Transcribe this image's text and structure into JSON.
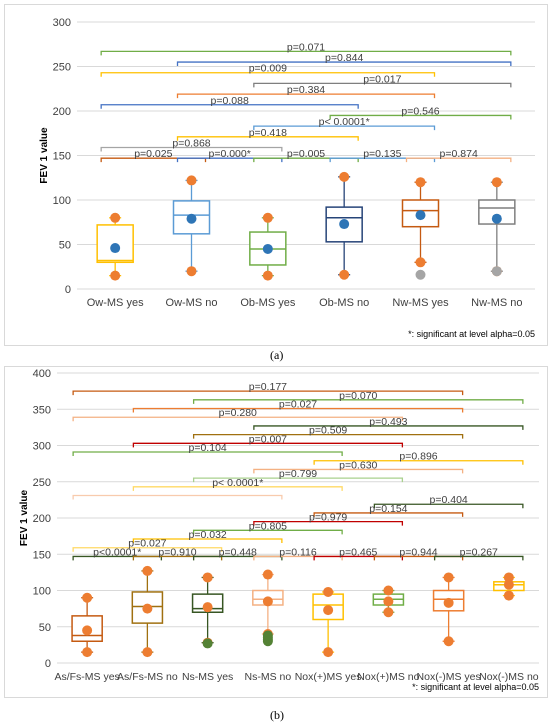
{
  "chart_data": [
    {
      "type": "boxplot",
      "ylabel": "FEV 1 value",
      "ylim": [
        0,
        300
      ],
      "yticks": [
        0,
        50,
        100,
        150,
        200,
        250,
        300
      ],
      "footnote": "*: significant at level alpha=0.05",
      "panel_label": "(a)",
      "categories": [
        "Ow-MS yes",
        "Ow-MS no",
        "Ob-MS yes",
        "Ob-MS no",
        "Nw-MS yes",
        "Nw-MS no"
      ],
      "boxes": [
        {
          "color": "#ffc000",
          "whisker_low": 15,
          "q1": 30,
          "median": 32,
          "q3": 72,
          "whisker_high": 80,
          "mean": 46,
          "outliers": []
        },
        {
          "color": "#5b9bd5",
          "whisker_low": 20,
          "q1": 62,
          "median": 83,
          "q3": 99,
          "whisker_high": 122,
          "mean": 79,
          "outliers": []
        },
        {
          "color": "#70ad47",
          "whisker_low": 15,
          "q1": 27,
          "median": 45,
          "q3": 64,
          "whisker_high": 80,
          "mean": 45,
          "outliers": []
        },
        {
          "color": "#264478",
          "whisker_low": 16,
          "q1": 53,
          "median": 80,
          "q3": 92,
          "whisker_high": 126,
          "mean": 73,
          "outliers": []
        },
        {
          "color": "#c55a11",
          "whisker_low": 30,
          "q1": 70,
          "median": 88,
          "q3": 100,
          "whisker_high": 120,
          "mean": 83,
          "outliers": [
            16
          ]
        },
        {
          "color": "#7f7f7f",
          "whisker_low": 20,
          "q1": 73,
          "median": 91,
          "q3": 100,
          "whisker_high": 120,
          "mean": 79,
          "outliers": [
            20
          ]
        }
      ],
      "comparisons": [
        {
          "from": 0,
          "to": 5,
          "y": 267,
          "label": "p=0.071",
          "color": "#70ad47"
        },
        {
          "from": 1,
          "to": 5,
          "y": 255,
          "label": "p=0.844",
          "color": "#4472c4"
        },
        {
          "from": 0,
          "to": 4,
          "y": 243,
          "label": "p=0.009",
          "color": "#ffc000"
        },
        {
          "from": 2,
          "to": 5,
          "y": 231,
          "label": "p=0.017",
          "color": "#7f7f7f"
        },
        {
          "from": 1,
          "to": 4,
          "y": 219,
          "label": "p=0.384",
          "color": "#ed7d31"
        },
        {
          "from": 0,
          "to": 3,
          "y": 207,
          "label": "p=0.088",
          "color": "#4472c4"
        },
        {
          "from": 3,
          "to": 5,
          "y": 195,
          "label": "p=0.546",
          "color": "#70ad47"
        },
        {
          "from": 2,
          "to": 4,
          "y": 183,
          "label": "p< 0.0001*",
          "color": "#5b9bd5"
        },
        {
          "from": 1,
          "to": 3,
          "y": 171,
          "label": "p=0.418",
          "color": "#ffc000"
        },
        {
          "from": 0,
          "to": 2,
          "y": 159,
          "label": "p=0.868",
          "color": "#a5a5a5"
        },
        {
          "from": 0,
          "to": 1,
          "y": 147,
          "label": "p=0.025",
          "color": "#c55a11"
        },
        {
          "from": 1,
          "to": 2,
          "y": 147,
          "label": "p=0.000*",
          "color": "#4472c4"
        },
        {
          "from": 2,
          "to": 3,
          "y": 147,
          "label": "p=0.005",
          "color": "#70ad47"
        },
        {
          "from": 3,
          "to": 4,
          "y": 147,
          "label": "p=0.135",
          "color": "#5b9bd5"
        },
        {
          "from": 4,
          "to": 5,
          "y": 147,
          "label": "p=0.874",
          "color": "#f4b183"
        }
      ]
    },
    {
      "type": "boxplot",
      "ylabel": "FEV 1 value",
      "ylim": [
        0,
        400
      ],
      "yticks": [
        0,
        50,
        100,
        150,
        200,
        250,
        300,
        350,
        400
      ],
      "footnote": "*: significant at level alpha=0.05",
      "panel_label": "(b)",
      "categories": [
        "As/Fs-MS yes",
        "As/Fs-MS no",
        "Ns-MS yes",
        "Ns-MS no",
        "Nox(+)MS yes",
        "Nox(+)MS no",
        "Nox(-)MS yes",
        "Nox(-)MS no"
      ],
      "boxes": [
        {
          "color": "#c55a11",
          "whisker_low": 15,
          "q1": 30,
          "median": 38,
          "q3": 65,
          "whisker_high": 90,
          "mean": 45,
          "outliers": []
        },
        {
          "color": "#a07010",
          "whisker_low": 15,
          "q1": 55,
          "median": 78,
          "q3": 98,
          "whisker_high": 127,
          "mean": 75,
          "outliers": []
        },
        {
          "color": "#375623",
          "whisker_low": 28,
          "q1": 70,
          "median": 75,
          "q3": 95,
          "whisker_high": 118,
          "mean": 77,
          "outliers": [
            27
          ]
        },
        {
          "color": "#f4b183",
          "whisker_low": 40,
          "q1": 80,
          "median": 88,
          "q3": 100,
          "whisker_high": 122,
          "mean": 85,
          "outliers": [
            30,
            32,
            35,
            38
          ]
        },
        {
          "color": "#ffc000",
          "whisker_low": 15,
          "q1": 60,
          "median": 80,
          "q3": 95,
          "whisker_high": 98,
          "mean": 73,
          "outliers": []
        },
        {
          "color": "#70ad47",
          "whisker_low": 70,
          "q1": 80,
          "median": 88,
          "q3": 95,
          "whisker_high": 100,
          "mean": 85,
          "outliers": []
        },
        {
          "color": "#ed7d31",
          "whisker_low": 30,
          "q1": 72,
          "median": 88,
          "q3": 100,
          "whisker_high": 118,
          "mean": 83,
          "outliers": []
        },
        {
          "color": "#ffc000",
          "whisker_low": 93,
          "q1": 100,
          "median": 108,
          "q3": 112,
          "whisker_high": 118,
          "mean": 108,
          "outliers": []
        }
      ],
      "comparisons": [
        {
          "from": 0,
          "to": 6,
          "y": 375,
          "label": "p=0.177",
          "color": "#c55a11"
        },
        {
          "from": 2,
          "to": 7,
          "y": 363,
          "label": "p=0.070",
          "color": "#70ad47"
        },
        {
          "from": 1,
          "to": 6,
          "y": 351,
          "label": "p=0.027",
          "color": "#ed7d31"
        },
        {
          "from": 0,
          "to": 5,
          "y": 339,
          "label": "p=0.280",
          "color": "#f4b183"
        },
        {
          "from": 3,
          "to": 7,
          "y": 327,
          "label": "p=0.493",
          "color": "#375623"
        },
        {
          "from": 2,
          "to": 6,
          "y": 315,
          "label": "p=0.509",
          "color": "#a07010"
        },
        {
          "from": 1,
          "to": 5,
          "y": 303,
          "label": "p=0.007",
          "color": "#c00000"
        },
        {
          "from": 0,
          "to": 4,
          "y": 291,
          "label": "p=0.104",
          "color": "#70ad47"
        },
        {
          "from": 4,
          "to": 7,
          "y": 279,
          "label": "p=0.896",
          "color": "#ffc000"
        },
        {
          "from": 3,
          "to": 6,
          "y": 267,
          "label": "p=0.630",
          "color": "#f4b183"
        },
        {
          "from": 2,
          "to": 5,
          "y": 255,
          "label": "p=0.799",
          "color": "#a9d18e"
        },
        {
          "from": 1,
          "to": 4,
          "y": 243,
          "label": "p< 0.0001*",
          "color": "#ffd966"
        },
        {
          "from": 0,
          "to": 3,
          "y": 231,
          "label": "",
          "color": "#f8cbad"
        },
        {
          "from": 5,
          "to": 7,
          "y": 219,
          "label": "p=0.404",
          "color": "#375623"
        },
        {
          "from": 4,
          "to": 6,
          "y": 207,
          "label": "p=0.154",
          "color": "#c55a11"
        },
        {
          "from": 3,
          "to": 5,
          "y": 195,
          "label": "p=0.979",
          "color": "#c00000"
        },
        {
          "from": 2,
          "to": 4,
          "y": 183,
          "label": "p=0.805",
          "color": "#70ad47"
        },
        {
          "from": 1,
          "to": 3,
          "y": 171,
          "label": "p=0.032",
          "color": "#ffc000"
        },
        {
          "from": 0,
          "to": 2,
          "y": 159,
          "label": "p=0.027",
          "color": "#ffd966"
        },
        {
          "from": 0,
          "to": 1,
          "y": 147,
          "label": "p<0.0001*",
          "color": "#375623"
        },
        {
          "from": 1,
          "to": 2,
          "y": 147,
          "label": "p=0.910",
          "color": "#a07010"
        },
        {
          "from": 2,
          "to": 3,
          "y": 147,
          "label": "p=0.448",
          "color": "#375623"
        },
        {
          "from": 3,
          "to": 4,
          "y": 147,
          "label": "p=0.116",
          "color": "#f4b183"
        },
        {
          "from": 4,
          "to": 5,
          "y": 147,
          "label": "p=0.465",
          "color": "#c00000"
        },
        {
          "from": 5,
          "to": 6,
          "y": 147,
          "label": "p=0.944",
          "color": "#c55a11"
        },
        {
          "from": 6,
          "to": 7,
          "y": 147,
          "label": "p=0.267",
          "color": "#375623"
        }
      ]
    }
  ],
  "style": {
    "mean_color": "#2e75b6",
    "whisker_end_color": "#ed7d31",
    "outlier_color": "#a5a5a5",
    "grid_color": "#d9d9d9"
  }
}
